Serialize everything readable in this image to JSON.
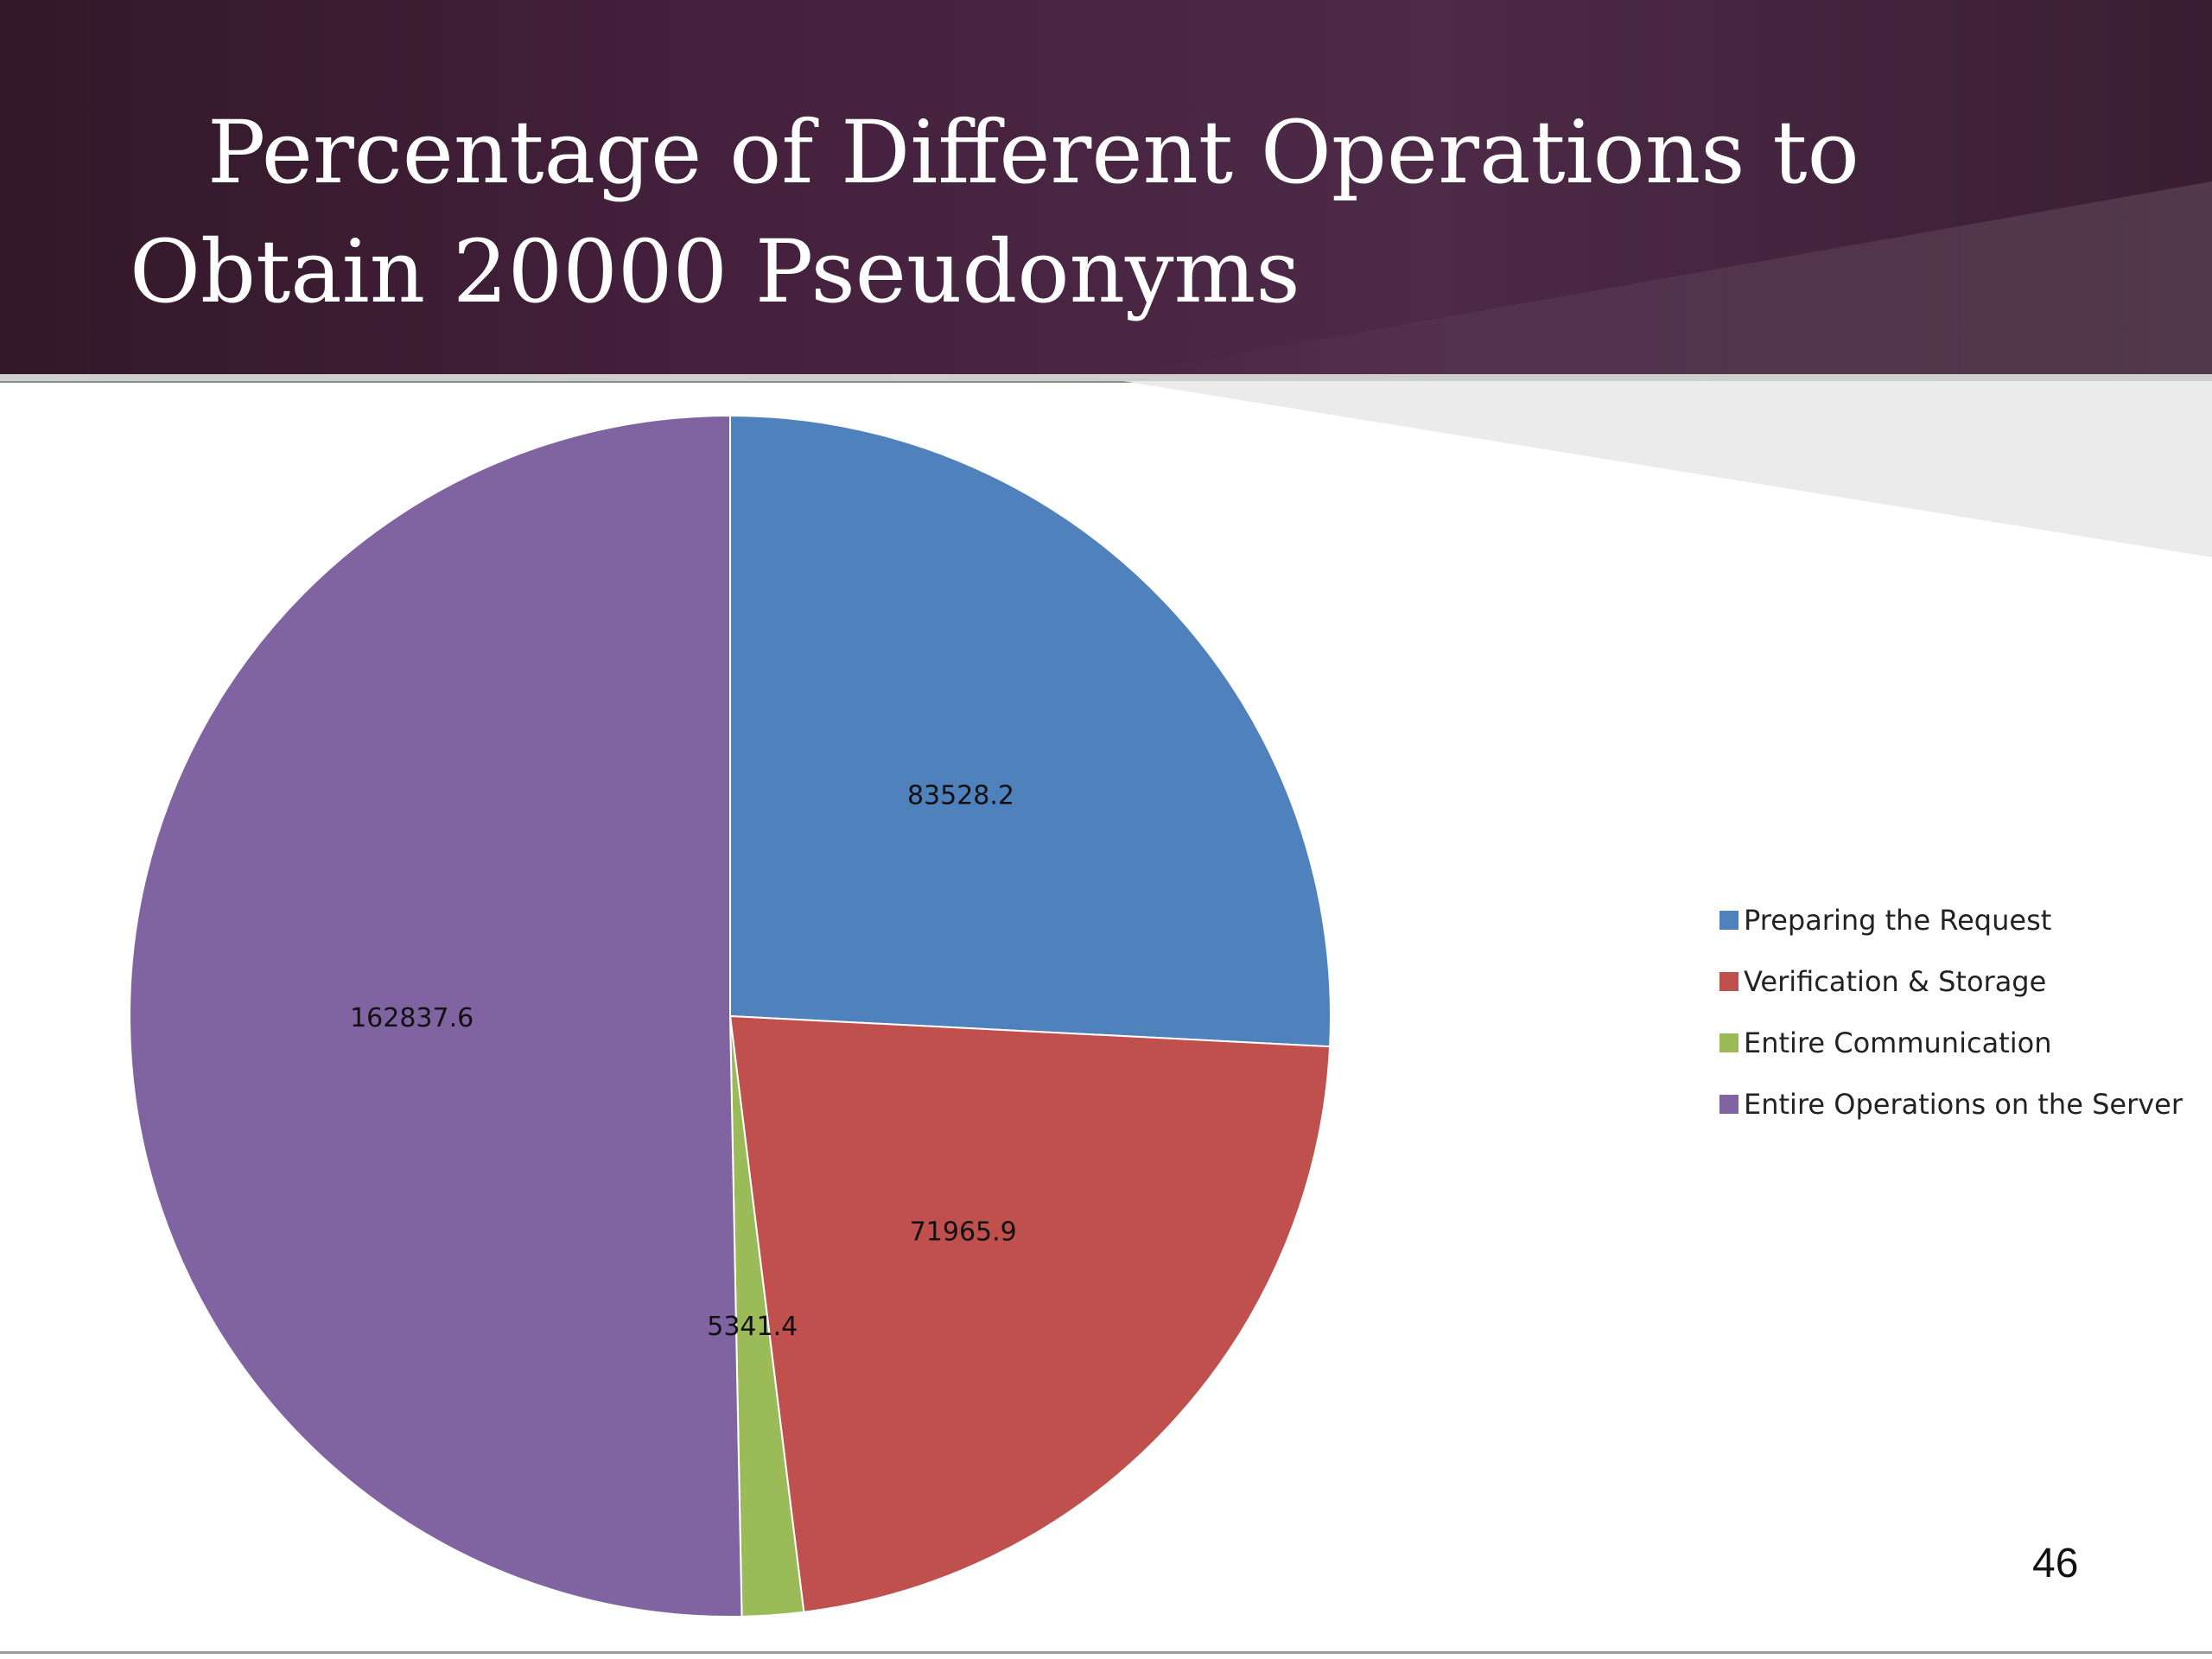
{
  "slide": {
    "title": "Percentage of Different Operations to Obtain 20000 Pseudonyms",
    "page_number": "46"
  },
  "colors": {
    "header_background": "#45213e",
    "title_text": "#ffffff"
  },
  "chart_data": {
    "type": "pie",
    "title": "",
    "legend_position": "right",
    "start_angle_deg": 0,
    "direction": "clockwise",
    "slices": [
      {
        "name": "Preparing the Request",
        "value": 83528.2,
        "label": "83528.2",
        "color": "#4f81bd"
      },
      {
        "name": "Verification & Storage",
        "value": 71965.9,
        "label": "71965.9",
        "color": "#c0504d"
      },
      {
        "name": "Entire Communication",
        "value": 5341.4,
        "label": "5341.4",
        "color": "#9bbb59"
      },
      {
        "name": "Entire Operations on the Server",
        "value": 162837.6,
        "label": "162837.6",
        "color": "#8064a2"
      }
    ]
  }
}
